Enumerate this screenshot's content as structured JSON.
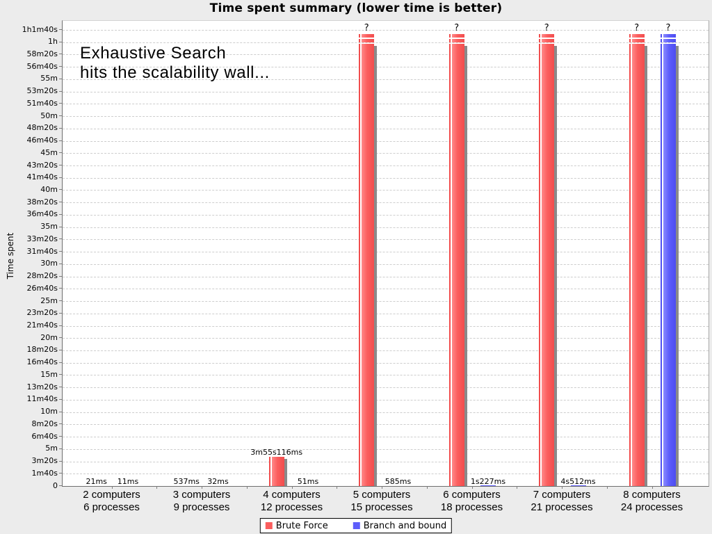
{
  "title": "Time spent summary (lower time is better)",
  "window_background": "#ececec",
  "chart_data": {
    "type": "bar",
    "title": "Time spent summary (lower time is better)",
    "xlabel": "",
    "ylabel": "Time spent",
    "annotation": {
      "line1": "Exhaustive Search",
      "line2": "hits the scalability wall..."
    },
    "grid": "horizontal-dashed",
    "legend_position": "bottom",
    "ylim_seconds": [
      0,
      3700
    ],
    "tick_step_seconds": 100,
    "y_ticks": [
      "0",
      "1m40s",
      "3m20s",
      "5m",
      "6m40s",
      "8m20s",
      "10m",
      "11m40s",
      "13m20s",
      "15m",
      "16m40s",
      "18m20s",
      "20m",
      "21m40s",
      "23m20s",
      "25m",
      "26m40s",
      "28m20s",
      "30m",
      "31m40s",
      "33m20s",
      "35m",
      "36m40s",
      "38m20s",
      "40m",
      "41m40s",
      "43m20s",
      "45m",
      "46m40s",
      "48m20s",
      "50m",
      "51m40s",
      "53m20s",
      "55m",
      "56m40s",
      "58m20s",
      "1h",
      "1h1m40s"
    ],
    "categories": [
      "2 computers\n6 processes",
      "3 computers\n9 processes",
      "4 computers\n12 processes",
      "5 computers\n15 processes",
      "6 computers\n18 processes",
      "7 computers\n21 processes",
      "8 computers\n24 processes"
    ],
    "series": [
      {
        "name": "Brute Force",
        "color": "#fb5e5e",
        "color_light": "#ff8a8a",
        "color_dark": "#f14d4d",
        "values": [
          {
            "label": "21ms",
            "seconds": 0.021
          },
          {
            "label": "537ms",
            "seconds": 0.537
          },
          {
            "label": "3m55s116ms",
            "seconds": 235.116
          },
          {
            "label": "?",
            "seconds": null
          },
          {
            "label": "?",
            "seconds": null
          },
          {
            "label": "?",
            "seconds": null
          },
          {
            "label": "?",
            "seconds": null
          }
        ]
      },
      {
        "name": "Branch and bound",
        "color": "#5e5efb",
        "color_light": "#8a8aff",
        "color_dark": "#4d4df1",
        "values": [
          {
            "label": "11ms",
            "seconds": 0.011
          },
          {
            "label": "32ms",
            "seconds": 0.032
          },
          {
            "label": "51ms",
            "seconds": 0.051
          },
          {
            "label": "585ms",
            "seconds": 0.585
          },
          {
            "label": "1s227ms",
            "seconds": 1.227
          },
          {
            "label": "4s512ms",
            "seconds": 4.512
          },
          {
            "label": "?",
            "seconds": null
          }
        ]
      }
    ],
    "shadow_color": "#8a8a8a"
  }
}
